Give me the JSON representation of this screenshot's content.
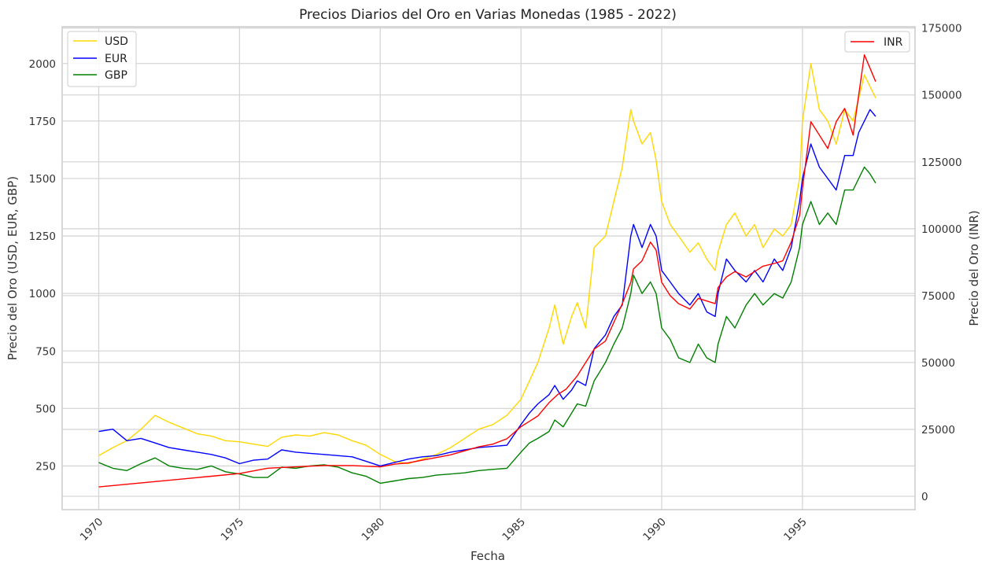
{
  "chart_data": {
    "type": "line",
    "title": "Precios Diarios del Oro en Varias Monedas (1985 - 2022)",
    "xlabel": "Fecha",
    "ylabel_left": "Precio del Oro (USD, EUR, GBP)",
    "ylabel_right": "Precio del Oro (INR)",
    "x_ticks": [
      "1970",
      "1975",
      "1980",
      "1985",
      "1990",
      "1995"
    ],
    "y_left_ticks": [
      "250",
      "500",
      "750",
      "1000",
      "1250",
      "1500",
      "1750",
      "2000"
    ],
    "y_right_ticks": [
      "0",
      "25000",
      "50000",
      "75000",
      "100000",
      "125000",
      "150000",
      "175000"
    ],
    "xlim": [
      1968.7,
      1999.0
    ],
    "ylim_left": [
      60,
      2160
    ],
    "ylim_right": [
      -5000,
      175500
    ],
    "grid": true,
    "legend_left": {
      "position": "upper-left",
      "entries": [
        "USD",
        "EUR",
        "GBP"
      ]
    },
    "legend_right": {
      "position": "upper-right",
      "entries": [
        "INR"
      ]
    },
    "colors": {
      "USD": "#FFD700",
      "EUR": "#0000FF",
      "GBP": "#008000",
      "INR": "#FF0000"
    },
    "series": [
      {
        "name": "USD",
        "axis": "left",
        "x": [
          1970.0,
          1970.5,
          1971.0,
          1971.5,
          1972.0,
          1972.5,
          1973.0,
          1973.5,
          1974.0,
          1974.5,
          1975.0,
          1975.5,
          1976.0,
          1976.5,
          1977.0,
          1977.5,
          1978.0,
          1978.5,
          1979.0,
          1979.5,
          1980.0,
          1980.5,
          1981.0,
          1981.5,
          1982.0,
          1982.5,
          1983.0,
          1983.5,
          1984.0,
          1984.5,
          1985.0,
          1985.3,
          1985.6,
          1986.0,
          1986.2,
          1986.5,
          1986.8,
          1987.0,
          1987.3,
          1987.6,
          1988.0,
          1988.3,
          1988.6,
          1988.9,
          1989.0,
          1989.3,
          1989.6,
          1989.8,
          1990.0,
          1990.3,
          1990.6,
          1991.0,
          1991.3,
          1991.6,
          1991.9,
          1992.0,
          1992.3,
          1992.6,
          1993.0,
          1993.3,
          1993.6,
          1994.0,
          1994.3,
          1994.6,
          1994.9,
          1995.0,
          1995.3,
          1995.6,
          1995.9,
          1996.2,
          1996.5,
          1996.8,
          1997.0,
          1997.2,
          1997.4,
          1997.6
        ],
        "values": [
          295,
          330,
          360,
          410,
          470,
          440,
          415,
          390,
          380,
          360,
          355,
          345,
          335,
          375,
          385,
          380,
          395,
          385,
          360,
          340,
          300,
          270,
          260,
          280,
          300,
          330,
          370,
          410,
          430,
          470,
          540,
          620,
          700,
          850,
          950,
          780,
          900,
          960,
          850,
          1200,
          1250,
          1400,
          1550,
          1800,
          1750,
          1650,
          1700,
          1580,
          1400,
          1300,
          1250,
          1180,
          1220,
          1150,
          1100,
          1180,
          1300,
          1350,
          1250,
          1300,
          1200,
          1280,
          1250,
          1300,
          1500,
          1750,
          2000,
          1800,
          1750,
          1650,
          1800,
          1750,
          1850,
          1950,
          1900,
          1850
        ]
      },
      {
        "name": "EUR",
        "axis": "left",
        "x": [
          1970.0,
          1970.5,
          1971.0,
          1971.5,
          1972.0,
          1972.5,
          1973.0,
          1973.5,
          1974.0,
          1974.5,
          1975.0,
          1975.5,
          1976.0,
          1976.5,
          1977.0,
          1977.5,
          1978.0,
          1978.5,
          1979.0,
          1979.5,
          1980.0,
          1980.5,
          1981.0,
          1981.5,
          1982.0,
          1982.5,
          1983.0,
          1983.5,
          1984.0,
          1984.5,
          1985.0,
          1985.3,
          1985.6,
          1986.0,
          1986.2,
          1986.5,
          1986.8,
          1987.0,
          1987.3,
          1987.6,
          1988.0,
          1988.3,
          1988.6,
          1988.9,
          1989.0,
          1989.3,
          1989.6,
          1989.8,
          1990.0,
          1990.3,
          1990.6,
          1991.0,
          1991.3,
          1991.6,
          1991.9,
          1992.0,
          1992.3,
          1992.6,
          1993.0,
          1993.3,
          1993.6,
          1994.0,
          1994.3,
          1994.6,
          1994.9,
          1995.0,
          1995.3,
          1995.6,
          1995.9,
          1996.2,
          1996.5,
          1996.8,
          1997.0,
          1997.2,
          1997.4,
          1997.6
        ],
        "values": [
          400,
          410,
          360,
          370,
          350,
          330,
          320,
          310,
          300,
          285,
          260,
          275,
          280,
          320,
          310,
          305,
          300,
          295,
          290,
          270,
          250,
          265,
          280,
          290,
          295,
          310,
          320,
          330,
          335,
          340,
          430,
          480,
          520,
          560,
          600,
          540,
          580,
          620,
          600,
          760,
          820,
          900,
          950,
          1250,
          1300,
          1200,
          1300,
          1250,
          1100,
          1050,
          1000,
          950,
          1000,
          920,
          900,
          1000,
          1150,
          1100,
          1050,
          1100,
          1050,
          1150,
          1100,
          1200,
          1400,
          1500,
          1650,
          1550,
          1500,
          1450,
          1600,
          1600,
          1700,
          1750,
          1800,
          1770
        ]
      },
      {
        "name": "GBP",
        "axis": "left",
        "x": [
          1970.0,
          1970.5,
          1971.0,
          1971.5,
          1972.0,
          1972.5,
          1973.0,
          1973.5,
          1974.0,
          1974.5,
          1975.0,
          1975.5,
          1976.0,
          1976.5,
          1977.0,
          1977.5,
          1978.0,
          1978.5,
          1979.0,
          1979.5,
          1980.0,
          1980.5,
          1981.0,
          1981.5,
          1982.0,
          1982.5,
          1983.0,
          1983.5,
          1984.0,
          1984.5,
          1985.0,
          1985.3,
          1985.6,
          1986.0,
          1986.2,
          1986.5,
          1986.8,
          1987.0,
          1987.3,
          1987.6,
          1988.0,
          1988.3,
          1988.6,
          1988.9,
          1989.0,
          1989.3,
          1989.6,
          1989.8,
          1990.0,
          1990.3,
          1990.6,
          1991.0,
          1991.3,
          1991.6,
          1991.9,
          1992.0,
          1992.3,
          1992.6,
          1993.0,
          1993.3,
          1993.6,
          1994.0,
          1994.3,
          1994.6,
          1994.9,
          1995.0,
          1995.3,
          1995.6,
          1995.9,
          1996.2,
          1996.5,
          1996.8,
          1997.0,
          1997.2,
          1997.4,
          1997.6
        ],
        "values": [
          265,
          240,
          230,
          260,
          285,
          250,
          240,
          235,
          250,
          225,
          215,
          200,
          200,
          245,
          240,
          250,
          255,
          245,
          220,
          205,
          175,
          185,
          195,
          200,
          210,
          215,
          220,
          230,
          235,
          240,
          310,
          350,
          370,
          400,
          450,
          420,
          480,
          520,
          510,
          620,
          700,
          780,
          850,
          1000,
          1080,
          1000,
          1050,
          1000,
          850,
          800,
          720,
          700,
          780,
          720,
          700,
          780,
          900,
          850,
          950,
          1000,
          950,
          1000,
          980,
          1050,
          1200,
          1300,
          1400,
          1300,
          1350,
          1300,
          1450,
          1450,
          1500,
          1550,
          1520,
          1480
        ]
      },
      {
        "name": "INR",
        "axis": "right",
        "x": [
          1970.0,
          1971.0,
          1972.0,
          1973.0,
          1974.0,
          1975.0,
          1976.0,
          1977.0,
          1978.0,
          1979.0,
          1980.0,
          1980.5,
          1981.0,
          1981.5,
          1982.0,
          1982.5,
          1983.0,
          1983.5,
          1984.0,
          1984.5,
          1985.0,
          1985.3,
          1985.6,
          1986.0,
          1986.3,
          1986.6,
          1987.0,
          1987.3,
          1987.6,
          1988.0,
          1988.3,
          1988.6,
          1988.9,
          1989.0,
          1989.3,
          1989.6,
          1989.8,
          1990.0,
          1990.3,
          1990.6,
          1991.0,
          1991.3,
          1991.6,
          1991.9,
          1992.0,
          1992.3,
          1992.6,
          1993.0,
          1993.3,
          1993.6,
          1994.0,
          1994.3,
          1994.6,
          1994.9,
          1995.0,
          1995.3,
          1995.6,
          1995.9,
          1996.2,
          1996.5,
          1996.8,
          1997.0,
          1997.2,
          1997.4,
          1997.6
        ],
        "values": [
          3500,
          4500,
          5500,
          6500,
          7500,
          8500,
          10500,
          11000,
          11500,
          11500,
          11000,
          12000,
          12500,
          13500,
          14500,
          15500,
          17000,
          18500,
          19500,
          21500,
          26000,
          28000,
          30000,
          35000,
          38000,
          40000,
          45000,
          50000,
          55000,
          58000,
          65000,
          72000,
          80000,
          85000,
          88000,
          95000,
          92000,
          80000,
          75000,
          72000,
          70000,
          74000,
          73000,
          72000,
          78000,
          82000,
          84000,
          82000,
          84000,
          86000,
          87000,
          88000,
          95000,
          105000,
          115000,
          140000,
          135000,
          130000,
          140000,
          145000,
          135000,
          150000,
          165000,
          160000,
          155000
        ]
      }
    ]
  }
}
